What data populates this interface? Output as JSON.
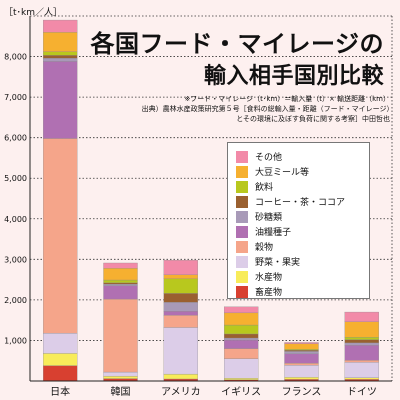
{
  "chart_data": {
    "type": "bar",
    "stacked": true,
    "title_line1": "各国フード・マイレージの",
    "title_line2": "輸入相手国別比較",
    "note": "※フード・マイレージ（t･km）＝輸入量（t）× 輸送距離（km）",
    "source": "出典）農林水産政策研究第５号［食料の総輸入量・距離（フード・マイレージ）とその環境に及ぼす負荷に関する考察］中田哲也",
    "ylabel": "［t･km／人］",
    "xlabel": "",
    "ylim": [
      0,
      9000
    ],
    "yticks": [
      1000,
      2000,
      3000,
      4000,
      5000,
      6000,
      7000,
      8000
    ],
    "ytick_labels": [
      "1,000",
      "2,000",
      "3,000",
      "4,000",
      "5,000",
      "6,000",
      "7,000",
      "8,000"
    ],
    "grid": true,
    "legend_position": "right",
    "categories": [
      "日本",
      "韓国",
      "アメリカ",
      "イギリス",
      "フランス",
      "ドイツ"
    ],
    "series": [
      {
        "name": "畜産物",
        "color": "#d84030",
        "values": [
          380,
          60,
          50,
          30,
          40,
          40
        ]
      },
      {
        "name": "水産物",
        "color": "#f8ec5a",
        "values": [
          300,
          60,
          120,
          40,
          50,
          40
        ]
      },
      {
        "name": "野菜・果実",
        "color": "#dccde8",
        "values": [
          500,
          100,
          1150,
          480,
          300,
          380
        ]
      },
      {
        "name": "穀物",
        "color": "#f5a58a",
        "values": [
          4800,
          1800,
          300,
          250,
          50,
          50
        ]
      },
      {
        "name": "油糧種子",
        "color": "#b070b2",
        "values": [
          1900,
          330,
          100,
          210,
          230,
          370
        ]
      },
      {
        "name": "砂糖類",
        "color": "#a89ab8",
        "values": [
          80,
          40,
          220,
          50,
          60,
          60
        ]
      },
      {
        "name": "コーヒー・茶・ココア",
        "color": "#9a6030",
        "values": [
          70,
          30,
          220,
          100,
          30,
          80
        ]
      },
      {
        "name": "飲料",
        "color": "#b8c81e",
        "values": [
          90,
          70,
          360,
          220,
          20,
          60
        ]
      },
      {
        "name": "大豆ミール等",
        "color": "#f6b030",
        "values": [
          480,
          290,
          100,
          300,
          140,
          380
        ]
      },
      {
        "name": "その他",
        "color": "#f28aa8",
        "values": [
          300,
          130,
          360,
          150,
          30,
          240
        ]
      }
    ]
  }
}
